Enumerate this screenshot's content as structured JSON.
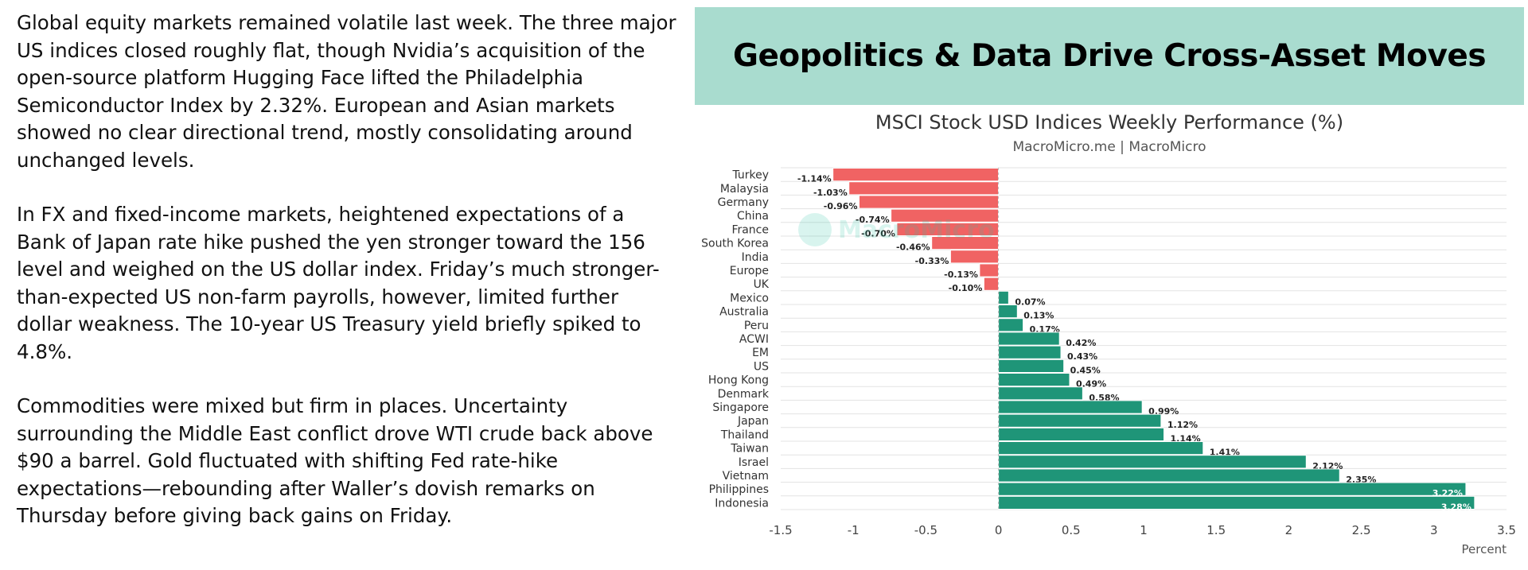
{
  "article": {
    "p1": "Global equity markets remained volatile last week. The three major US indices closed roughly flat, though Nvidia’s acquisition of the open-source platform Hugging Face lifted the Philadelphia Semiconductor Index by 2.32%. European and Asian markets showed no clear directional trend, mostly consolidating around unchanged levels.",
    "p2": "In FX and fixed-income markets, heightened expectations of a Bank of Japan rate hike pushed the yen stronger toward the 156 level and weighed on the US dollar index. Friday’s much stronger-than-expected US non-farm payrolls, however, limited further dollar weakness. The 10-year US Treasury yield briefly spiked to 4.8%.",
    "p3": "Commodities were mixed but firm in places. Uncertainty surrounding the Middle East conflict drove WTI crude back above $90 a barrel. Gold fluctuated with shifting Fed rate-hike expectations—rebounding after Waller’s dovish remarks on Thursday before giving back gains on Friday."
  },
  "banner": {
    "title": "Geopolitics & Data Drive Cross-Asset Moves"
  },
  "watermark": {
    "text": "MacroMicro"
  },
  "chart_data": {
    "type": "bar",
    "orientation": "horizontal",
    "title": "MSCI Stock USD Indices Weekly Performance (%)",
    "subtitle": "MacroMicro.me | MacroMicro",
    "xlabel": "Percent",
    "ylabel": "",
    "xlim": [
      -1.5,
      3.5
    ],
    "xticks": [
      -1.5,
      -1,
      -0.5,
      0,
      0.5,
      1,
      1.5,
      2,
      2.5,
      3,
      3.5
    ],
    "xtick_labels": [
      "-1.5",
      "-1",
      "-0.5",
      "0",
      "0.5",
      "1",
      "1.5",
      "2",
      "2.5",
      "3",
      "3.5"
    ],
    "grid": true,
    "categories": [
      "Turkey",
      "Malaysia",
      "Germany",
      "China",
      "France",
      "South Korea",
      "India",
      "Europe",
      "UK",
      "Mexico",
      "Australia",
      "Peru",
      "ACWI",
      "EM",
      "US",
      "Hong Kong",
      "Denmark",
      "Singapore",
      "Japan",
      "Thailand",
      "Taiwan",
      "Israel",
      "Vietnam",
      "Philippines",
      "Indonesia"
    ],
    "values": [
      -1.14,
      -1.03,
      -0.96,
      -0.74,
      -0.7,
      -0.46,
      -0.33,
      -0.13,
      -0.1,
      0.07,
      0.13,
      0.17,
      0.42,
      0.43,
      0.45,
      0.49,
      0.58,
      0.99,
      1.12,
      1.14,
      1.41,
      2.12,
      2.35,
      3.22,
      3.28
    ],
    "data_labels": [
      "-1.14%",
      "-1.03%",
      "-0.96%",
      "-0.74%",
      "-0.70%",
      "-0.46%",
      "-0.33%",
      "-0.13%",
      "-0.10%",
      "0.07%",
      "0.13%",
      "0.17%",
      "0.42%",
      "0.43%",
      "0.45%",
      "0.49%",
      "0.58%",
      "0.99%",
      "1.12%",
      "1.14%",
      "1.41%",
      "2.12%",
      "2.35%",
      "3.22%",
      "3.28%"
    ],
    "colors": {
      "negative": "#f06363",
      "positive": "#1f9578",
      "grid": "#e3e3e3",
      "zero_line": "#bbbbbb"
    }
  }
}
